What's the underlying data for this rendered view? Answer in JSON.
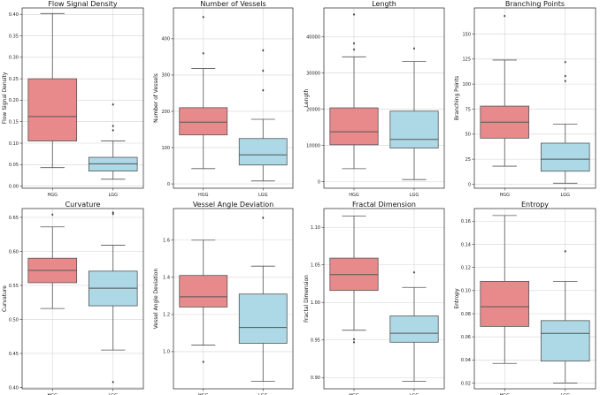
{
  "chart_data": [
    {
      "type": "box",
      "title": "Flow Signal Density",
      "ylabel": "Flow Signal Density",
      "xlabel": "",
      "categories": [
        "HGG",
        "LGG"
      ],
      "ylim": [
        -0.005,
        0.415
      ],
      "yticks": [
        0.0,
        0.05,
        0.1,
        0.15,
        0.2,
        0.25,
        0.3,
        0.35,
        0.4
      ],
      "ytick_labels": [
        "0.00",
        "0.05",
        "0.10",
        "0.15",
        "0.20",
        "0.25",
        "0.30",
        "0.35",
        "0.40"
      ],
      "grid": true,
      "boxes": [
        {
          "name": "HGG",
          "color": "#e88a8c",
          "whisker_low": 0.043,
          "q1": 0.105,
          "median": 0.162,
          "q3": 0.25,
          "whisker_high": 0.402,
          "outliers": []
        },
        {
          "name": "LGG",
          "color": "#add8e6",
          "whisker_low": 0.016,
          "q1": 0.035,
          "median": 0.052,
          "q3": 0.067,
          "whisker_high": 0.105,
          "outliers": [
            0.13,
            0.14,
            0.19
          ]
        }
      ]
    },
    {
      "type": "box",
      "title": "Number of Vessels",
      "ylabel": "Number of Vessels",
      "xlabel": "",
      "categories": [
        "HGG",
        "LGG"
      ],
      "ylim": [
        -12,
        485
      ],
      "yticks": [
        0,
        100,
        200,
        300,
        400
      ],
      "ytick_labels": [
        "0",
        "100",
        "200",
        "300",
        "400"
      ],
      "grid": true,
      "boxes": [
        {
          "name": "HGG",
          "color": "#e88a8c",
          "whisker_low": 42,
          "q1": 135,
          "median": 170,
          "q3": 210,
          "whisker_high": 318,
          "outliers": [
            360,
            460
          ]
        },
        {
          "name": "LGG",
          "color": "#add8e6",
          "whisker_low": 8,
          "q1": 52,
          "median": 80,
          "q3": 125,
          "whisker_high": 178,
          "outliers": [
            258,
            312,
            368
          ]
        }
      ]
    },
    {
      "type": "box",
      "title": "Length",
      "ylabel": "Length",
      "xlabel": "",
      "categories": [
        "HGG",
        "LGG"
      ],
      "ylim": [
        -1800,
        48000
      ],
      "yticks": [
        0,
        10000,
        20000,
        30000,
        40000
      ],
      "ytick_labels": [
        "0",
        "10000",
        "20000",
        "30000",
        "40000"
      ],
      "grid": true,
      "boxes": [
        {
          "name": "HGG",
          "color": "#e88a8c",
          "whisker_low": 3600,
          "q1": 10200,
          "median": 13800,
          "q3": 20400,
          "whisker_high": 34500,
          "outliers": [
            36500,
            38200,
            46200
          ]
        },
        {
          "name": "LGG",
          "color": "#add8e6",
          "whisker_low": 600,
          "q1": 9300,
          "median": 11700,
          "q3": 19500,
          "whisker_high": 33200,
          "outliers": [
            36800
          ]
        }
      ]
    },
    {
      "type": "box",
      "title": "Branching Points",
      "ylabel": "Branching Points",
      "xlabel": "",
      "categories": [
        "HGG",
        "LGG"
      ],
      "ylim": [
        -4,
        176
      ],
      "yticks": [
        0,
        25,
        50,
        75,
        100,
        125,
        150
      ],
      "ytick_labels": [
        "0",
        "25",
        "50",
        "75",
        "100",
        "125",
        "150"
      ],
      "grid": true,
      "boxes": [
        {
          "name": "HGG",
          "color": "#e88a8c",
          "whisker_low": 18,
          "q1": 46,
          "median": 62,
          "q3": 78,
          "whisker_high": 124,
          "outliers": [
            168
          ]
        },
        {
          "name": "LGG",
          "color": "#add8e6",
          "whisker_low": 1,
          "q1": 13,
          "median": 25,
          "q3": 41,
          "whisker_high": 60,
          "outliers": [
            103,
            108,
            122
          ]
        }
      ]
    },
    {
      "type": "box",
      "title": "Curvature",
      "ylabel": "Curvature",
      "xlabel": "",
      "categories": [
        "HGG",
        "LGG"
      ],
      "ylim": [
        0.398,
        0.663
      ],
      "yticks": [
        0.4,
        0.45,
        0.5,
        0.55,
        0.6,
        0.65
      ],
      "ytick_labels": [
        "0.40",
        "0.45",
        "0.50",
        "0.55",
        "0.60",
        "0.65"
      ],
      "grid": true,
      "boxes": [
        {
          "name": "HGG",
          "color": "#e88a8c",
          "whisker_low": 0.516,
          "q1": 0.554,
          "median": 0.572,
          "q3": 0.59,
          "whisker_high": 0.636,
          "outliers": [
            0.654
          ]
        },
        {
          "name": "LGG",
          "color": "#add8e6",
          "whisker_low": 0.455,
          "q1": 0.52,
          "median": 0.546,
          "q3": 0.571,
          "whisker_high": 0.609,
          "outliers": [
            0.408,
            0.655,
            0.657
          ]
        }
      ]
    },
    {
      "type": "box",
      "title": "Vessel Angle Deviation",
      "ylabel": "Vessel Angle Deviation",
      "xlabel": "",
      "categories": [
        "HGG",
        "LGG"
      ],
      "ylim": [
        0.8,
        1.77
      ],
      "yticks": [
        1.0,
        1.2,
        1.4,
        1.6
      ],
      "ytick_labels": [
        "1.0",
        "1.2",
        "1.4",
        "1.6"
      ],
      "grid": true,
      "boxes": [
        {
          "name": "HGG",
          "color": "#e88a8c",
          "whisker_low": 1.035,
          "q1": 1.24,
          "median": 1.295,
          "q3": 1.41,
          "whisker_high": 1.6,
          "outliers": [
            0.945
          ]
        },
        {
          "name": "LGG",
          "color": "#add8e6",
          "whisker_low": 0.84,
          "q1": 1.045,
          "median": 1.13,
          "q3": 1.31,
          "whisker_high": 1.46,
          "outliers": [
            1.72
          ]
        }
      ]
    },
    {
      "type": "box",
      "title": "Fractal Dimension",
      "ylabel": "Fractal Dimension",
      "xlabel": "",
      "categories": [
        "HGG",
        "LGG"
      ],
      "ylim": [
        0.885,
        1.125
      ],
      "yticks": [
        0.9,
        0.95,
        1.0,
        1.05,
        1.1
      ],
      "ytick_labels": [
        "0.90",
        "0.95",
        "1.00",
        "1.05",
        "1.10"
      ],
      "grid": true,
      "boxes": [
        {
          "name": "HGG",
          "color": "#e88a8c",
          "whisker_low": 0.963,
          "q1": 1.016,
          "median": 1.037,
          "q3": 1.059,
          "whisker_high": 1.115,
          "outliers": [
            0.947,
            0.951
          ]
        },
        {
          "name": "LGG",
          "color": "#add8e6",
          "whisker_low": 0.895,
          "q1": 0.947,
          "median": 0.959,
          "q3": 0.982,
          "whisker_high": 1.02,
          "outliers": [
            1.04
          ]
        }
      ]
    },
    {
      "type": "box",
      "title": "Entropy",
      "ylabel": "Entropy",
      "xlabel": "",
      "categories": [
        "HGG",
        "LGG"
      ],
      "ylim": [
        0.015,
        0.171
      ],
      "yticks": [
        0.02,
        0.04,
        0.06,
        0.08,
        0.1,
        0.12,
        0.14,
        0.16
      ],
      "ytick_labels": [
        "0.02",
        "0.04",
        "0.06",
        "0.08",
        "0.10",
        "0.12",
        "0.14",
        "0.16"
      ],
      "grid": true,
      "boxes": [
        {
          "name": "HGG",
          "color": "#e88a8c",
          "whisker_low": 0.037,
          "q1": 0.069,
          "median": 0.086,
          "q3": 0.108,
          "whisker_high": 0.165,
          "outliers": []
        },
        {
          "name": "LGG",
          "color": "#add8e6",
          "whisker_low": 0.02,
          "q1": 0.039,
          "median": 0.063,
          "q3": 0.074,
          "whisker_high": 0.108,
          "outliers": [
            0.134
          ]
        }
      ]
    }
  ]
}
